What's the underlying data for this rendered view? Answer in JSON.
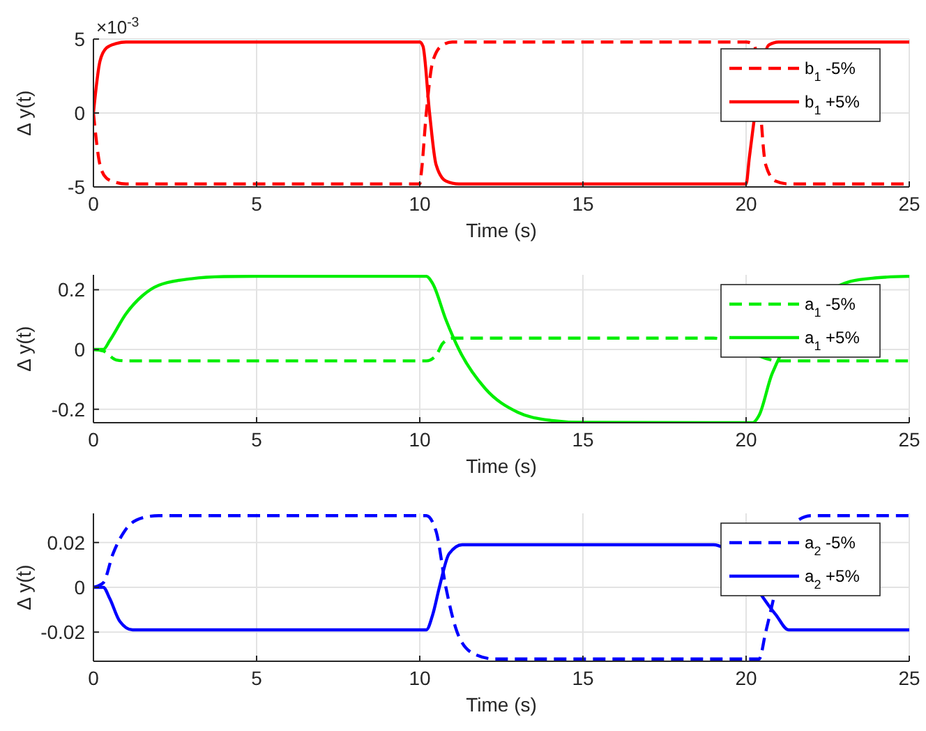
{
  "chart_data": [
    {
      "type": "line",
      "xlabel": "Time (s)",
      "ylabel": "Δ y(t)",
      "annotations": [
        "×10$^{-3}$"
      ],
      "xlim": [
        0,
        25
      ],
      "xticks": [
        0,
        5,
        10,
        15,
        20,
        25
      ],
      "ylim": [
        -5,
        5
      ],
      "yticks": [
        -5,
        0,
        5
      ],
      "grid": true,
      "legend": "top right",
      "series": [
        {
          "name": "b$_{1}$ -5%",
          "color": "#ff0000",
          "line_style": "dashed",
          "x": [
            0,
            0.2,
            0.4,
            0.7,
            1,
            10,
            10.05,
            10.2,
            10.4,
            10.7,
            11,
            20,
            20.25,
            20.6,
            20.9,
            21.3,
            25
          ],
          "values": [
            0,
            -3.5,
            -4.4,
            -4.7,
            -4.8,
            -4.8,
            -4,
            0,
            3.5,
            4.6,
            4.8,
            4.8,
            4.6,
            -3.5,
            -4.6,
            -4.8,
            -4.8
          ]
        },
        {
          "name": "b$_{1}$ +5%",
          "color": "#ff0000",
          "line_style": "solid",
          "x": [
            0,
            0.2,
            0.4,
            0.7,
            1,
            10,
            10.1,
            10.3,
            10.5,
            10.8,
            11.2,
            20,
            20.1,
            20.7,
            21,
            25
          ],
          "values": [
            0,
            3.5,
            4.4,
            4.7,
            4.8,
            4.8,
            4.5,
            0,
            -3.5,
            -4.6,
            -4.8,
            -4.8,
            -3,
            4.6,
            4.8,
            4.8
          ]
        }
      ]
    },
    {
      "type": "line",
      "xlabel": "Time (s)",
      "ylabel": "Δ y(t)",
      "xlim": [
        0,
        25
      ],
      "xticks": [
        0,
        5,
        10,
        15,
        20,
        25
      ],
      "ylim": [
        -0.245,
        0.25
      ],
      "yticks": [
        -0.2,
        0,
        0.2
      ],
      "grid": true,
      "legend": "top right",
      "series": [
        {
          "name": "a$_{1}$ -5%",
          "color": "#00ee00",
          "line_style": "dashed",
          "x": [
            0,
            0.3,
            0.7,
            1,
            10.2,
            10.5,
            10.7,
            11,
            19,
            21,
            25
          ],
          "values": [
            0,
            -0.005,
            -0.035,
            -0.038,
            -0.038,
            -0.02,
            0.02,
            0.038,
            0.038,
            -0.038,
            -0.038
          ]
        },
        {
          "name": "a$_{1}$ +5%",
          "color": "#00ee00",
          "line_style": "solid",
          "x": [
            0,
            0.3,
            0.5,
            1,
            1.5,
            2,
            3,
            4,
            5,
            10.2,
            10.4,
            10.8,
            11.2,
            12,
            13,
            14,
            15,
            20.2,
            20.4,
            20.8,
            23.2,
            24,
            25
          ],
          "values": [
            0,
            0,
            0.03,
            0.12,
            0.18,
            0.215,
            0.237,
            0.244,
            0.245,
            0.245,
            0.22,
            0.1,
            0,
            -0.13,
            -0.21,
            -0.237,
            -0.244,
            -0.245,
            -0.22,
            -0.08,
            0.228,
            0.24,
            0.245
          ]
        }
      ]
    },
    {
      "type": "line",
      "xlabel": "Time (s)",
      "ylabel": "Δ y(t)",
      "xlim": [
        0,
        25
      ],
      "xticks": [
        0,
        5,
        10,
        15,
        20,
        25
      ],
      "ylim": [
        -0.033,
        0.033
      ],
      "yticks": [
        -0.02,
        0,
        0.02
      ],
      "grid": true,
      "legend": "top right",
      "series": [
        {
          "name": "a$_{2}$ -5%",
          "color": "#0000ff",
          "line_style": "dashed",
          "x": [
            0,
            0.3,
            0.6,
            1,
            1.5,
            2,
            10.2,
            10.5,
            10.8,
            11.2,
            11.7,
            12.3,
            20.4,
            20.6,
            21.6,
            22,
            25
          ],
          "values": [
            0,
            0.002,
            0.015,
            0.026,
            0.031,
            0.032,
            0.032,
            0.025,
            0,
            -0.022,
            -0.03,
            -0.032,
            -0.032,
            -0.02,
            0.03,
            0.032,
            0.032
          ]
        },
        {
          "name": "a$_{2}$ +5%",
          "color": "#0000ff",
          "line_style": "solid",
          "x": [
            0,
            0.3,
            0.5,
            0.8,
            1.2,
            10.2,
            10.4,
            10.6,
            10.9,
            11.3,
            19,
            20.9,
            21.3,
            25
          ],
          "values": [
            0,
            0,
            -0.005,
            -0.015,
            -0.019,
            -0.019,
            -0.012,
            0,
            0.015,
            0.019,
            0.019,
            -0.012,
            -0.019,
            -0.019
          ]
        }
      ]
    }
  ]
}
